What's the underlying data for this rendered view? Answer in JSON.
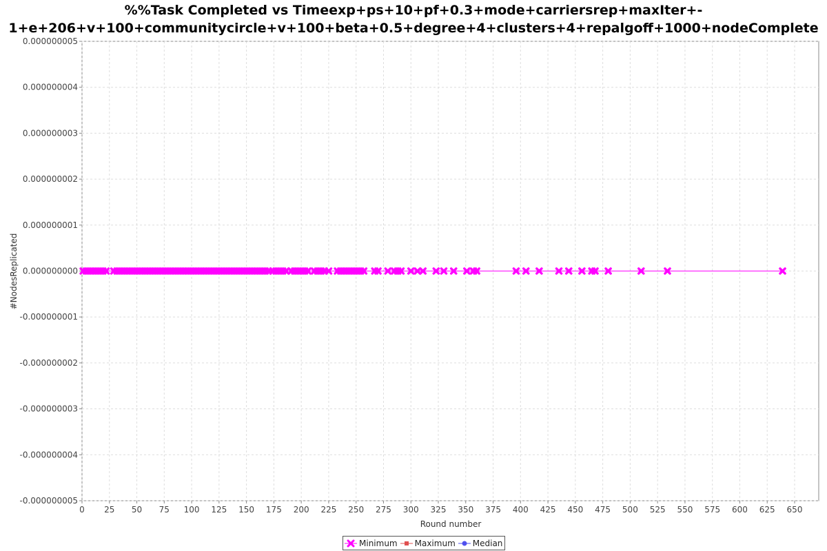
{
  "chart_data": {
    "type": "line",
    "title": "%%Task Completed vs Timeexp+ps+10+pf+0.3+mode+carriersrep+maxIter+-1+e+206+v+100+communitycircle+v+100+beta+0.5+degree+4+clusters+4+repalgoff+1000+nodeComplete",
    "title_lines": [
      "%%Task Completed vs Timeexp+ps+10+pf+0.3+mode+carriersrep+maxIter+-",
      "1+e+206+v+100+communitycircle+v+100+beta+0.5+degree+4+clusters+4+repalgoff+1000+nodeComplete"
    ],
    "xlabel": "Round number",
    "ylabel": "#NodesReplicated",
    "xlim": [
      0,
      672
    ],
    "ylim": [
      -5e-09,
      5e-09
    ],
    "grid": true,
    "legend_position": "bottom-center",
    "x_ticks": [
      0,
      25,
      50,
      75,
      100,
      125,
      150,
      175,
      200,
      225,
      250,
      275,
      300,
      325,
      350,
      375,
      400,
      425,
      450,
      475,
      500,
      525,
      550,
      575,
      600,
      625,
      650
    ],
    "x_tick_labels": [
      "0",
      "25",
      "50",
      "75",
      "100",
      "125",
      "150",
      "175",
      "200",
      "225",
      "250",
      "275",
      "300",
      "325",
      "350",
      "375",
      "400",
      "425",
      "450",
      "475",
      "500",
      "525",
      "550",
      "575",
      "600",
      "625",
      "650"
    ],
    "y_ticks": [
      5e-09,
      4e-09,
      3e-09,
      2e-09,
      1e-09,
      0,
      -1e-09,
      -2e-09,
      -3e-09,
      -4e-09,
      -5e-09
    ],
    "y_tick_labels": [
      "0.000000005",
      "0.000000004",
      "0.000000003",
      "0.000000002",
      "0.000000001",
      "0.000000000",
      "-0.000000001",
      "-0.000000002",
      "-0.000000003",
      "-0.000000004",
      "-0.000000005"
    ],
    "series": [
      {
        "name": "Minimum",
        "color": "#ff00ff",
        "marker": "x-cross",
        "x": [
          1,
          4,
          7,
          10,
          13,
          16,
          19,
          22,
          29,
          32,
          35,
          38,
          41,
          44,
          47,
          50,
          53,
          56,
          59,
          62,
          65,
          68,
          71,
          74,
          77,
          80,
          83,
          86,
          89,
          92,
          95,
          98,
          101,
          104,
          107,
          110,
          113,
          116,
          119,
          122,
          125,
          128,
          131,
          134,
          137,
          140,
          143,
          146,
          149,
          152,
          155,
          158,
          161,
          164,
          167,
          170,
          174,
          177,
          180,
          183,
          186,
          191,
          194,
          197,
          200,
          203,
          206,
          212,
          215,
          218,
          221,
          225,
          233,
          236,
          239,
          242,
          245,
          248,
          251,
          254,
          257,
          267,
          270,
          279,
          285,
          288,
          291,
          300,
          306,
          311,
          323,
          330,
          339,
          351,
          357,
          360,
          396,
          405,
          417,
          435,
          444,
          456,
          465,
          468,
          480,
          510,
          534,
          639
        ],
        "y": [
          0,
          0,
          0,
          0,
          0,
          0,
          0,
          0,
          0,
          0,
          0,
          0,
          0,
          0,
          0,
          0,
          0,
          0,
          0,
          0,
          0,
          0,
          0,
          0,
          0,
          0,
          0,
          0,
          0,
          0,
          0,
          0,
          0,
          0,
          0,
          0,
          0,
          0,
          0,
          0,
          0,
          0,
          0,
          0,
          0,
          0,
          0,
          0,
          0,
          0,
          0,
          0,
          0,
          0,
          0,
          0,
          0,
          0,
          0,
          0,
          0,
          0,
          0,
          0,
          0,
          0,
          0,
          0,
          0,
          0,
          0,
          0,
          0,
          0,
          0,
          0,
          0,
          0,
          0,
          0,
          0,
          0,
          0,
          0,
          0,
          0,
          0,
          0,
          0,
          0,
          0,
          0,
          0,
          0,
          0,
          0,
          0,
          0,
          0,
          0,
          0,
          0,
          0,
          0,
          0,
          0,
          0,
          0
        ]
      },
      {
        "name": "Maximum",
        "color": "#e05050",
        "marker": "square",
        "x": [],
        "y": []
      },
      {
        "name": "Median",
        "color": "#5050ee",
        "marker": "circle",
        "x": [],
        "y": []
      }
    ]
  }
}
